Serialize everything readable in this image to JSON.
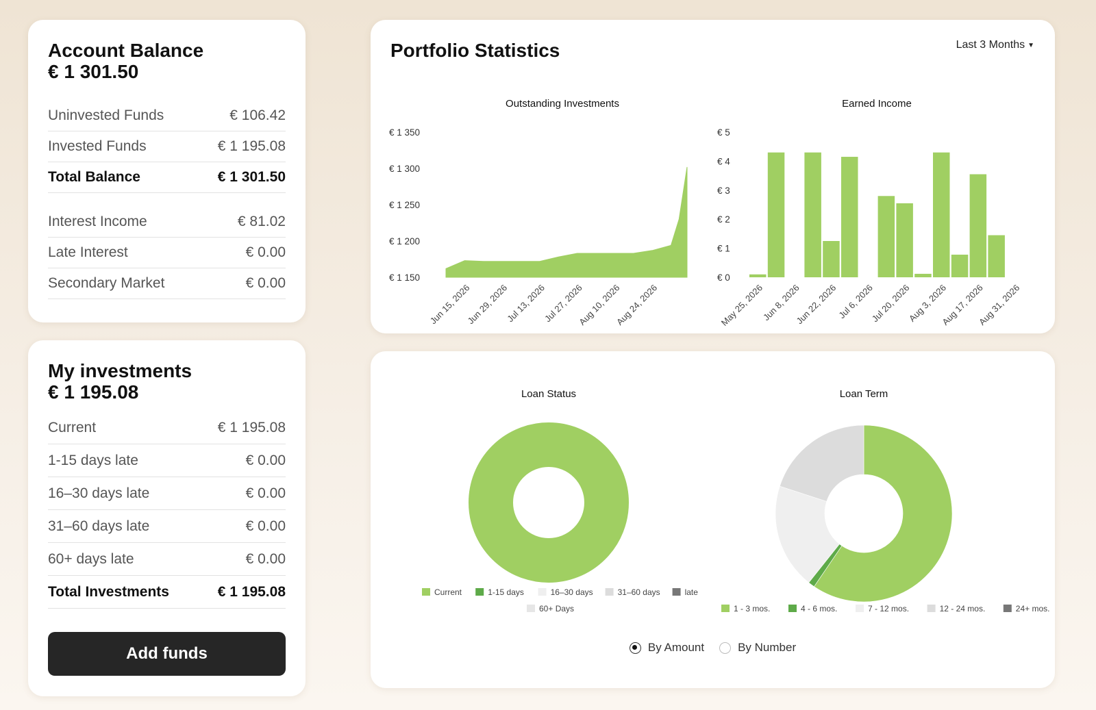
{
  "account": {
    "title": "Account Balance",
    "total": "€ 1 301.50",
    "rows": [
      {
        "label": "Uninvested Funds",
        "value": "€ 106.42"
      },
      {
        "label": "Invested Funds",
        "value": "€ 1 195.08"
      },
      {
        "label": "Total Balance",
        "value": "€ 1 301.50"
      }
    ],
    "rows2": [
      {
        "label": "Interest Income",
        "value": "€ 81.02"
      },
      {
        "label": "Late Interest",
        "value": "€ 0.00"
      },
      {
        "label": "Secondary Market",
        "value": "€ 0.00"
      }
    ]
  },
  "investments": {
    "title": "My investments",
    "total": "€ 1 195.08",
    "rows": [
      {
        "label": "Current",
        "value": "€ 1 195.08"
      },
      {
        "label": "1-15 days late",
        "value": "€ 0.00"
      },
      {
        "label": "16–30 days late",
        "value": "€ 0.00"
      },
      {
        "label": "31–60 days late",
        "value": "€ 0.00"
      },
      {
        "label": "60+ days late",
        "value": "€ 0.00"
      },
      {
        "label": "Total Investments",
        "value": "€ 1 195.08"
      }
    ],
    "add_funds_label": "Add funds"
  },
  "portfolio": {
    "title": "Portfolio Statistics",
    "period": "Last 3 Months"
  },
  "distribution": {
    "radio_by_amount": "By Amount",
    "radio_by_number": "By Number",
    "selected": "By Amount"
  },
  "colors": {
    "accent_green": "#a0cf62",
    "dark_green": "#5eaa49",
    "light_gray": "#efefef",
    "mid_gray": "#dcdcdc",
    "dark_gray": "#777777",
    "button_dark": "#262626"
  },
  "chart_data": [
    {
      "type": "area",
      "title": "Outstanding Investments",
      "ylim": [
        1150,
        1350
      ],
      "yticks": [
        "€ 1 150",
        "€ 1 200",
        "€ 1 250",
        "€ 1 300",
        "€ 1 350"
      ],
      "ytick_values": [
        1150,
        1200,
        1250,
        1300,
        1350
      ],
      "xticks": [
        "Jun 15, 2026",
        "Jun 29, 2026",
        "Jul 13, 2026",
        "Jul 27, 2026",
        "Aug 10, 2026",
        "Aug 24, 2026"
      ],
      "x": [
        "Jun 8, 2026",
        "Jun 15, 2026",
        "Jun 22, 2026",
        "Jun 29, 2026",
        "Jul 6, 2026",
        "Jul 13, 2026",
        "Jul 20, 2026",
        "Jul 27, 2026",
        "Aug 3, 2026",
        "Aug 10, 2026",
        "Aug 17, 2026",
        "Aug 24, 2026",
        "Aug 31, 2026",
        "Sep 3, 2026",
        "Sep 6, 2026"
      ],
      "values": [
        1162,
        1173,
        1172,
        1172,
        1172,
        1172,
        1178,
        1183,
        1183,
        1183,
        1183,
        1187,
        1194,
        1230,
        1302
      ]
    },
    {
      "type": "bar",
      "title": "Earned Income",
      "ylim": [
        0,
        5
      ],
      "yticks": [
        "€ 0",
        "€ 1",
        "€ 2",
        "€ 3",
        "€ 4",
        "€ 5"
      ],
      "ytick_values": [
        0,
        1,
        2,
        3,
        4,
        5
      ],
      "xticks": [
        "May 25, 2026",
        "Jun 8, 2026",
        "Jun 22, 2026",
        "Jul 6, 2026",
        "Jul 20, 2026",
        "Aug 3, 2026",
        "Aug 17, 2026",
        "Aug 31, 2026"
      ],
      "categories": [
        "May 25",
        "Jun 1",
        "Jun 8",
        "Jun 15",
        "Jun 22",
        "Jun 29",
        "Jul 6",
        "Jul 13",
        "Jul 20",
        "Jul 27",
        "Aug 3",
        "Aug 10",
        "Aug 17",
        "Aug 24"
      ],
      "values": [
        0.1,
        4.3,
        0,
        4.3,
        1.25,
        4.15,
        0,
        2.8,
        2.55,
        0.12,
        4.3,
        0.78,
        3.55,
        1.45
      ]
    },
    {
      "type": "pie",
      "title": "Loan Status",
      "labels": [
        "Current",
        "1-15 days",
        "16–30 days",
        "31–60 days",
        "late",
        "60+ Days"
      ],
      "colors": [
        "#a0cf62",
        "#5eaa49",
        "#efefef",
        "#dcdcdc",
        "#777777",
        "#e6e6e6"
      ],
      "values": [
        100,
        0,
        0,
        0,
        0,
        0
      ]
    },
    {
      "type": "pie",
      "title": "Loan Term",
      "labels": [
        "1 - 3 mos.",
        "4 - 6 mos.",
        "7 - 12 mos.",
        "12 - 24 mos.",
        "24+ mos."
      ],
      "colors": [
        "#a0cf62",
        "#5eaa49",
        "#efefef",
        "#dcdcdc",
        "#777777"
      ],
      "values": [
        59.5,
        1.2,
        19.3,
        20,
        0
      ]
    }
  ]
}
